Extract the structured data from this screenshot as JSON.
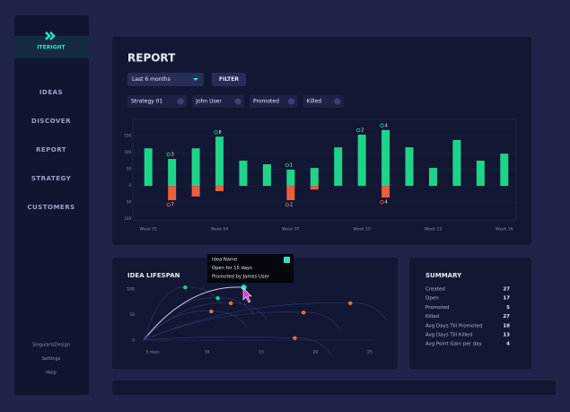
{
  "app": {
    "logo": "ITERIGHT",
    "nav": [
      "IDEAS",
      "DISCOVER",
      "REPORT",
      "STRATEGY",
      "CUSTOMERS"
    ],
    "footer": [
      "SingularisDesign",
      "Settings",
      "Help"
    ]
  },
  "filters": {
    "dropdown": "Last 6 months",
    "button": "FILTER",
    "chips": [
      "Strategy 01",
      "John User",
      "Promoted",
      "Killed"
    ]
  },
  "chart_data": [
    {
      "type": "bar",
      "title": "REPORT",
      "categories": [
        "Week 01",
        null,
        null,
        "Week 04",
        null,
        null,
        "Week 07",
        null,
        null,
        "Week 10",
        null,
        null,
        "Week 13",
        null,
        null,
        "Week 16"
      ],
      "series": [
        {
          "color": "#1ed48a",
          "values": [
            113,
            81,
            113,
            148,
            76,
            65,
            49,
            54,
            116,
            154,
            168,
            116,
            54,
            138,
            76,
            97
          ],
          "point_labels": [
            null,
            3,
            null,
            8,
            null,
            null,
            1,
            null,
            null,
            2,
            4,
            null,
            null,
            null,
            null,
            null
          ]
        },
        {
          "color": "#e8603c",
          "values": [
            null,
            -43,
            -32,
            -16,
            null,
            null,
            -43,
            -11,
            null,
            null,
            -35,
            null,
            null,
            null,
            null,
            null
          ],
          "point_labels": [
            null,
            7,
            null,
            null,
            null,
            null,
            2,
            null,
            null,
            null,
            4,
            null,
            null,
            null,
            null,
            null
          ]
        }
      ],
      "ylim": [
        -105,
        200
      ],
      "yticks": [
        150,
        100,
        50,
        0,
        {
          "value": -50,
          "label": "50"
        },
        {
          "value": -100,
          "label": "100"
        }
      ],
      "grid": true
    },
    {
      "type": "scatter",
      "title": "IDEA LIFESPAN",
      "series": [
        {
          "color": "#1ed48a",
          "x": [
            8,
            11
          ],
          "values": [
            103,
            82
          ]
        },
        {
          "color": "#2ee6c4",
          "x": [
            13.4
          ],
          "values": [
            103
          ]
        },
        {
          "color": "#e8703c",
          "x": [
            10.4,
            12.2,
            18.9,
            23.2,
            18.1
          ],
          "values": [
            56,
            72,
            54,
            72,
            4
          ]
        }
      ],
      "xlim": [
        4,
        25.5
      ],
      "ylim": [
        0,
        105
      ],
      "xticks": [
        {
          "value": 5,
          "label": "5 days"
        },
        10,
        15,
        20,
        25
      ],
      "yticks": [
        100,
        50,
        0
      ]
    }
  ],
  "tooltip": {
    "lines": [
      "Idea Name",
      "Open for 15 days",
      "Promoted by James User"
    ]
  },
  "summary": {
    "title": "SUMMARY",
    "rows": [
      [
        "Created",
        27
      ],
      [
        "Open",
        17
      ],
      [
        "Promoted",
        5
      ],
      [
        "Killed",
        27
      ],
      [
        "Avg Days Till Promoted",
        18
      ],
      [
        "Avg Days Till Killed",
        13
      ],
      [
        "Avg Point Gain per day",
        4
      ]
    ]
  }
}
